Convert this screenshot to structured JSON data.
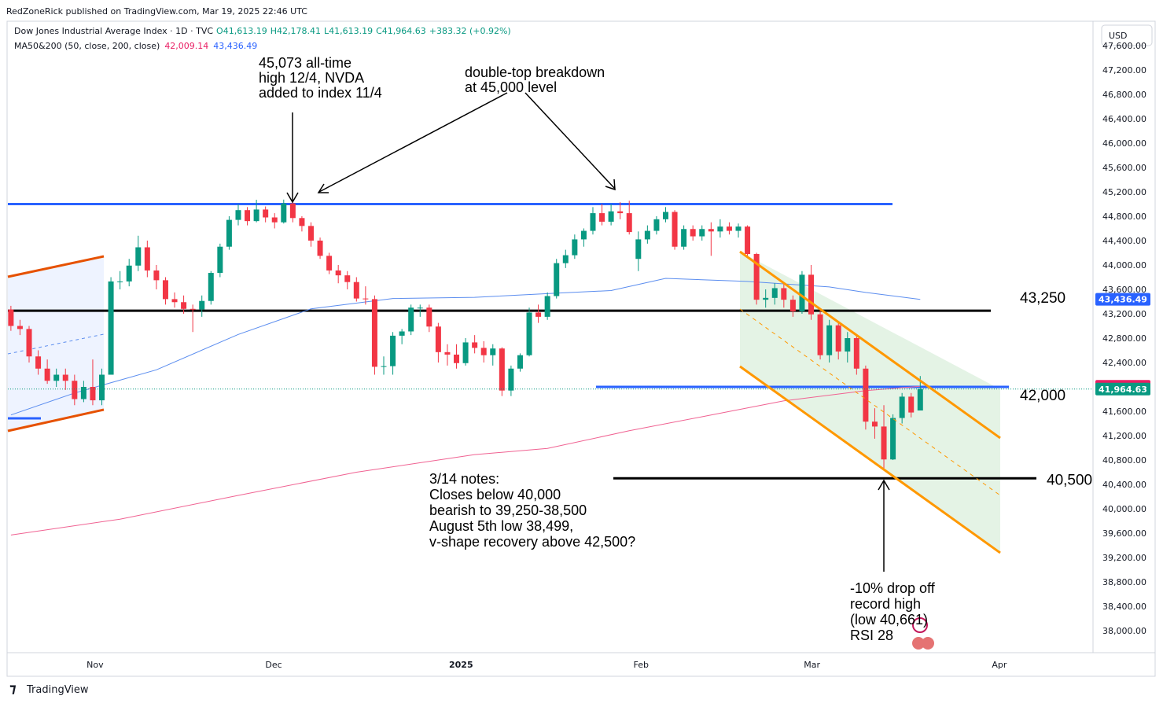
{
  "header": {
    "byline": "RedZoneRick published on TradingView.com, Mar 19, 2025 22:46 UTC",
    "symbol": "Dow Jones Industrial Average Index · 1D · TVC",
    "ohlc_labels": [
      "O41,613.19",
      "H42,178.41",
      "L41,613.19",
      "C41,964.63"
    ],
    "change": "+383.32 (+0.92%)",
    "ma_legend": "MA50&200 (50, close, 200, close)",
    "ma_values": [
      "42,009.14",
      "43,436.49"
    ],
    "currency": "USD"
  },
  "footer": {
    "brand": "TradingView"
  },
  "chart_data": {
    "type": "candlestick",
    "up_color": "#089981",
    "down_color": "#f23645",
    "open": [
      43270,
      43000,
      42950,
      42500,
      42300,
      42100,
      42200,
      42100,
      41800,
      42000,
      41780,
      42200,
      43730,
      43730,
      43990,
      44290,
      43910,
      43750,
      43440,
      43390,
      43280,
      43270,
      43410,
      43870,
      44300,
      44740,
      44900,
      44720,
      44910,
      44780,
      44700,
      45010,
      44770,
      44640,
      44400,
      44150,
      43910,
      43830,
      43720,
      43450,
      43440,
      42330,
      42340,
      42840,
      42910,
      43300,
      43300,
      42990,
      42570,
      42530,
      42390,
      42730,
      42640,
      42520,
      42630,
      41940,
      42300,
      42520,
      43220,
      43150,
      43490,
      44030,
      44160,
      44420,
      44560,
      44850,
      44710,
      44880,
      44850,
      44100,
      44420,
      44560,
      44750,
      44870,
      44300,
      44590,
      44470,
      44590,
      44550,
      44630,
      44560,
      44630,
      44180,
      43430,
      43460,
      43620,
      43430,
      43240,
      43840,
      43190,
      42520,
      43010,
      42580,
      42800,
      42300,
      41430,
      41350,
      40810,
      41490,
      41840,
      41613.19
    ],
    "high": [
      43330,
      43100,
      43000,
      42600,
      42450,
      42300,
      42300,
      42200,
      42100,
      42450,
      42300,
      43800,
      43900,
      44100,
      44480,
      44400,
      44000,
      43800,
      43550,
      43500,
      43350,
      43500,
      43900,
      44350,
      44800,
      45000,
      44950,
      45070,
      44960,
      44850,
      45073,
      45060,
      44800,
      44700,
      44450,
      44200,
      44000,
      43900,
      43800,
      43650,
      43500,
      42500,
      42900,
      42950,
      43350,
      43350,
      43350,
      43050,
      42700,
      42700,
      42800,
      42850,
      42750,
      42700,
      42650,
      42350,
      42550,
      43300,
      43350,
      43550,
      44100,
      44250,
      44500,
      44600,
      44950,
      45000,
      45000,
      45030,
      45054,
      44550,
      44650,
      44800,
      44950,
      44900,
      44650,
      44650,
      44650,
      44700,
      44750,
      44700,
      44680,
      44650,
      44200,
      43600,
      43700,
      43700,
      43500,
      43900,
      44000,
      43250,
      43100,
      43050,
      42900,
      42850,
      42350,
      41650,
      41700,
      41550,
      41900,
      41900,
      42178.41
    ],
    "low": [
      42920,
      42850,
      42400,
      42200,
      42050,
      42000,
      41950,
      41700,
      41750,
      41700,
      41700,
      42200,
      43600,
      43650,
      43900,
      43800,
      43600,
      43350,
      43300,
      43200,
      42900,
      43150,
      43350,
      43800,
      44250,
      44650,
      44650,
      44700,
      44700,
      44600,
      44680,
      44700,
      44550,
      44300,
      44100,
      43850,
      43700,
      43600,
      43400,
      43350,
      42200,
      42200,
      42200,
      42700,
      42850,
      43150,
      42900,
      42400,
      42350,
      42300,
      42350,
      42550,
      42400,
      42350,
      41850,
      41850,
      42250,
      42500,
      43050,
      43100,
      43450,
      43950,
      44100,
      44300,
      44500,
      44650,
      44650,
      44750,
      44500,
      43900,
      44350,
      44500,
      44700,
      44250,
      44250,
      44400,
      44400,
      44150,
      44450,
      44500,
      44450,
      44150,
      43350,
      43300,
      43350,
      43300,
      43150,
      43200,
      43100,
      42450,
      42400,
      42450,
      42400,
      42200,
      41300,
      41150,
      40660,
      40800,
      41400,
      41500,
      41613.19
    ],
    "close": [
      43000,
      42950,
      42500,
      42300,
      42100,
      42200,
      42100,
      41800,
      42000,
      41780,
      42200,
      43730,
      43730,
      43990,
      44290,
      43910,
      43750,
      43440,
      43390,
      43280,
      43270,
      43410,
      43870,
      44300,
      44740,
      44900,
      44720,
      44910,
      44780,
      44700,
      45010,
      44770,
      44640,
      44400,
      44150,
      43910,
      43830,
      43720,
      43450,
      43440,
      42330,
      42340,
      42840,
      42910,
      43300,
      43300,
      42990,
      42570,
      42530,
      42390,
      42730,
      42640,
      42520,
      42630,
      41940,
      42300,
      42520,
      43220,
      43150,
      43490,
      44030,
      44160,
      44420,
      44560,
      44850,
      44710,
      44880,
      44850,
      44540,
      44420,
      44560,
      44750,
      44870,
      44300,
      44590,
      44470,
      44590,
      44550,
      44630,
      44560,
      44630,
      44180,
      43430,
      43460,
      43620,
      43430,
      43240,
      43840,
      43190,
      42520,
      43010,
      42580,
      42800,
      42300,
      41430,
      41350,
      40810,
      41490,
      41840,
      41580,
      41964.63
    ],
    "last_label": "41,964.63",
    "xlim": [
      -1.2,
      119
    ],
    "xticks": [
      {
        "value": 9.25,
        "label": "Nov"
      },
      {
        "value": 28.9,
        "label": "Dec"
      },
      {
        "value": 49.5,
        "label": "2025"
      },
      {
        "value": 69.3,
        "label": "Feb"
      },
      {
        "value": 88.1,
        "label": "Mar"
      },
      {
        "value": 108.7,
        "label": "Apr"
      }
    ],
    "ylim": [
      37640,
      47960
    ],
    "yticks": [
      {
        "value": 38000,
        "label": "38,000.00"
      },
      {
        "value": 38400,
        "label": "38,400.00"
      },
      {
        "value": 38800,
        "label": "38,800.00"
      },
      {
        "value": 39200,
        "label": "39,200.00"
      },
      {
        "value": 39600,
        "label": "39,600.00"
      },
      {
        "value": 40000,
        "label": "40,000.00"
      },
      {
        "value": 40400,
        "label": "40,400.00"
      },
      {
        "value": 40800,
        "label": "40,800.00"
      },
      {
        "value": 41200,
        "label": "41,200.00"
      },
      {
        "value": 41600,
        "label": "41,600.00"
      },
      {
        "value": 42000,
        "label": "42,000.00"
      },
      {
        "value": 42400,
        "label": "42,400.00"
      },
      {
        "value": 42800,
        "label": "42,800.00"
      },
      {
        "value": 43200,
        "label": "43,200.00"
      },
      {
        "value": 43600,
        "label": "43,600.00"
      },
      {
        "value": 44000,
        "label": "44,000.00"
      },
      {
        "value": 44400,
        "label": "44,400.00"
      },
      {
        "value": 44800,
        "label": "44,800.00"
      },
      {
        "value": 45200,
        "label": "45,200.00"
      },
      {
        "value": 45600,
        "label": "45,600.00"
      },
      {
        "value": 46000,
        "label": "46,000.00"
      },
      {
        "value": 46400,
        "label": "46,400.00"
      },
      {
        "value": 46800,
        "label": "46,800.00"
      },
      {
        "value": 47200,
        "label": "47,200.00"
      },
      {
        "value": 47600,
        "label": "47,600.00"
      }
    ],
    "ma_series": [
      {
        "color": "#5b8def",
        "x": [
          0,
          7,
          16,
          25,
          33,
          42,
          51,
          59,
          66,
          72,
          81,
          90,
          94,
          100
        ],
        "values": [
          41540,
          41900,
          42280,
          42860,
          43280,
          43450,
          43470,
          43530,
          43580,
          43780,
          43730,
          43640,
          43550,
          43436.49
        ],
        "last_label": "43,436.49"
      },
      {
        "color": "#f06292",
        "x": [
          0,
          12,
          25,
          38,
          51,
          59,
          68,
          76,
          85,
          94,
          100
        ],
        "values": [
          39570,
          39830,
          40220,
          40600,
          40890,
          40990,
          41280,
          41510,
          41770,
          41940,
          42009.14
        ],
        "last_label": "42,009.14"
      }
    ],
    "levels": [
      {
        "value": 45000,
        "color": "#2962ff"
      },
      {
        "value": 43250,
        "color": "#000000",
        "label": "43,250"
      },
      {
        "value": 42000,
        "color": "#2962ff",
        "label": "42,000"
      },
      {
        "value": 40500,
        "color": "#000000",
        "label": "40,500"
      }
    ],
    "annotations": [
      {
        "lines": [
          "45,073 all-time",
          "high 12/4, NVDA",
          "added to index 11/4"
        ]
      },
      {
        "lines": [
          "double-top breakdown",
          "at 45,000 level"
        ]
      },
      {
        "lines": [
          "3/14 notes:",
          "Closes below 40,000",
          "bearish to 39,250-38,500",
          "August 5th low 38,499,",
          "v-shape recovery above 42,500?"
        ]
      },
      {
        "lines": [
          "-10% drop off",
          "record high",
          "(low 40,661)",
          "RSI 28"
        ]
      }
    ]
  }
}
